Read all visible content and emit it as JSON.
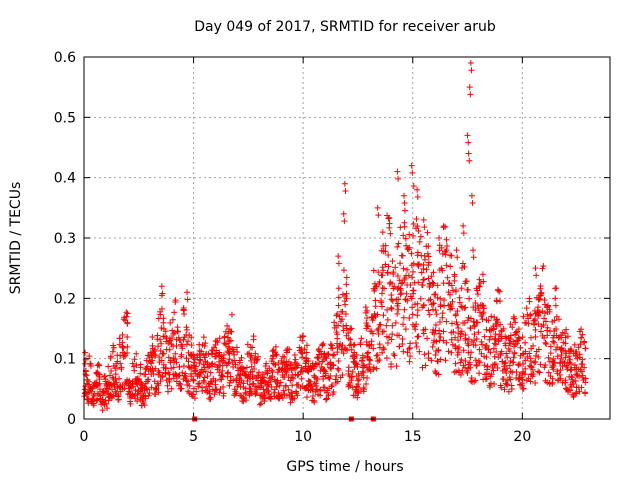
{
  "chart_data": {
    "type": "scatter",
    "title": "Day 049 of 2017, SRMTID for receiver arub",
    "xlabel": "GPS time / hours",
    "ylabel": "SRMTID / TECUs",
    "xlim": [
      0,
      24
    ],
    "ylim": [
      0,
      0.6
    ],
    "x_ticks": [
      0,
      5,
      10,
      15,
      20
    ],
    "y_ticks": [
      0,
      0.1,
      0.2,
      0.3,
      0.4,
      0.5,
      0.6
    ],
    "x_tick_labels": [
      "0",
      "5",
      "10",
      "15",
      "20"
    ],
    "y_tick_labels": [
      "0",
      "0.1",
      "0.2",
      "0.3",
      "0.4",
      "0.5",
      "0.6"
    ],
    "grid": true,
    "marker": "+",
    "color": "#ff0000",
    "series": [
      {
        "name": "SRMTID",
        "x": [
          0.0,
          0.1,
          0.2,
          0.3,
          0.4,
          0.5,
          0.6,
          0.7,
          0.8,
          0.9,
          1.0,
          1.1,
          1.2,
          1.3,
          1.4,
          1.5,
          1.6,
          1.7,
          1.8,
          1.9,
          2.0,
          2.1,
          2.2,
          2.3,
          2.4,
          2.5,
          2.6,
          2.7,
          2.8,
          2.9,
          3.0,
          3.1,
          3.2,
          3.3,
          3.4,
          3.5,
          3.6,
          3.7,
          3.8,
          3.9,
          4.0,
          4.1,
          4.2,
          4.3,
          4.4,
          4.5,
          4.6,
          4.7,
          4.8,
          4.9,
          5.0,
          5.2,
          5.4,
          5.6,
          5.8,
          6.0,
          6.2,
          6.4,
          6.6,
          6.8,
          7.0,
          7.2,
          7.4,
          7.6,
          7.8,
          8.0,
          8.2,
          8.4,
          8.6,
          8.8,
          9.0,
          9.2,
          9.4,
          9.6,
          9.8,
          10.0,
          10.2,
          10.4,
          10.6,
          10.8,
          11.0,
          11.2,
          11.4,
          11.6,
          11.8,
          12.0,
          12.2,
          12.4,
          12.6,
          12.8,
          13.0,
          13.2,
          13.4,
          13.6,
          13.8,
          14.0,
          14.2,
          14.4,
          14.6,
          14.8,
          15.0,
          15.2,
          15.4,
          15.6,
          15.8,
          16.0,
          16.2,
          16.4,
          16.6,
          16.8,
          17.0,
          17.2,
          17.4,
          17.6,
          17.8,
          18.0,
          18.2,
          18.4,
          18.6,
          18.8,
          19.0,
          19.2,
          19.4,
          19.6,
          19.8,
          20.0,
          20.2,
          20.4,
          20.6,
          20.8,
          21.0,
          21.2,
          21.4,
          21.6,
          21.8,
          22.0,
          22.2,
          22.4,
          22.6,
          22.8
        ],
        "y": [
          0.06,
          0.05,
          0.07,
          0.06,
          0.04,
          0.05,
          0.06,
          0.05,
          0.03,
          0.05,
          0.04,
          0.06,
          0.07,
          0.08,
          0.06,
          0.07,
          0.09,
          0.1,
          0.11,
          0.12,
          0.05,
          0.04,
          0.06,
          0.07,
          0.05,
          0.06,
          0.04,
          0.05,
          0.07,
          0.08,
          0.09,
          0.1,
          0.08,
          0.09,
          0.12,
          0.14,
          0.11,
          0.1,
          0.09,
          0.12,
          0.11,
          0.13,
          0.1,
          0.09,
          0.11,
          0.12,
          0.1,
          0.09,
          0.11,
          0.08,
          0.07,
          0.08,
          0.09,
          0.07,
          0.08,
          0.09,
          0.07,
          0.1,
          0.12,
          0.08,
          0.07,
          0.06,
          0.08,
          0.09,
          0.07,
          0.05,
          0.06,
          0.07,
          0.08,
          0.06,
          0.07,
          0.08,
          0.06,
          0.07,
          0.09,
          0.08,
          0.07,
          0.06,
          0.08,
          0.09,
          0.07,
          0.08,
          0.12,
          0.14,
          0.16,
          0.1,
          0.08,
          0.07,
          0.09,
          0.12,
          0.14,
          0.16,
          0.18,
          0.2,
          0.22,
          0.17,
          0.19,
          0.21,
          0.24,
          0.2,
          0.25,
          0.22,
          0.18,
          0.2,
          0.17,
          0.15,
          0.19,
          0.21,
          0.18,
          0.16,
          0.14,
          0.17,
          0.15,
          0.12,
          0.14,
          0.15,
          0.13,
          0.11,
          0.12,
          0.14,
          0.1,
          0.09,
          0.11,
          0.12,
          0.1,
          0.11,
          0.13,
          0.12,
          0.15,
          0.17,
          0.13,
          0.12,
          0.14,
          0.11,
          0.1,
          0.09,
          0.08,
          0.09,
          0.1,
          0.09
        ],
        "spikes": [
          {
            "x": 0.05,
            "y": 0.11
          },
          {
            "x": 1.95,
            "y": 0.17
          },
          {
            "x": 3.55,
            "y": 0.22
          },
          {
            "x": 4.7,
            "y": 0.21
          },
          {
            "x": 11.6,
            "y": 0.27
          },
          {
            "x": 11.9,
            "y": 0.39
          },
          {
            "x": 11.85,
            "y": 0.34
          },
          {
            "x": 13.4,
            "y": 0.35
          },
          {
            "x": 14.3,
            "y": 0.41
          },
          {
            "x": 14.6,
            "y": 0.37
          },
          {
            "x": 14.95,
            "y": 0.42
          },
          {
            "x": 15.2,
            "y": 0.38
          },
          {
            "x": 15.5,
            "y": 0.33
          },
          {
            "x": 16.2,
            "y": 0.3
          },
          {
            "x": 17.0,
            "y": 0.28
          },
          {
            "x": 17.3,
            "y": 0.32
          },
          {
            "x": 17.5,
            "y": 0.47
          },
          {
            "x": 17.55,
            "y": 0.44
          },
          {
            "x": 17.6,
            "y": 0.55
          },
          {
            "x": 17.65,
            "y": 0.59
          },
          {
            "x": 17.7,
            "y": 0.37
          },
          {
            "x": 17.75,
            "y": 0.28
          },
          {
            "x": 18.2,
            "y": 0.24
          },
          {
            "x": 20.6,
            "y": 0.25
          },
          {
            "x": 21.5,
            "y": 0.2
          }
        ],
        "gap_markers_x": [
          5.05,
          12.2,
          13.2
        ]
      }
    ]
  }
}
